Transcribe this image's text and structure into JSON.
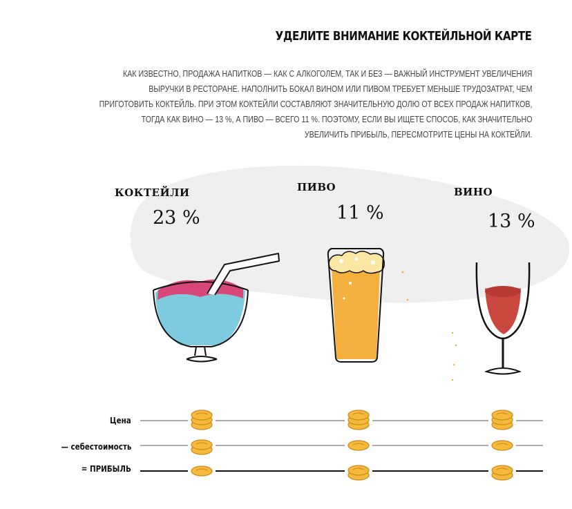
{
  "header": {
    "title": "УДЕЛИТЕ ВНИМАНИЕ КОКТЕЙЛЬНОЙ КАРТЕ",
    "lead_lines": [
      "КАК ИЗВЕСТНО, ПРОДАЖА НАПИТКОВ — КАК С АЛКОГОЛЕМ, ТАК И БЕЗ — ВАЖНЫЙ ИНСТРУМЕНТ УВЕЛИЧЕНИЯ",
      "ВЫРУЧКИ В РЕСТОРАНЕ. НАПОЛНИТЬ БОКАЛ ВИНОМ ИЛИ ПИВОМ ТРЕБУЕТ МЕНЬШЕ ТРУДОЗАТРАТ, ЧЕМ",
      "ПРИГОТОВИТЬ КОКТЕЙЛЬ. ПРИ ЭТОМ КОКТЕЙЛИ СОСТАВЛЯЮТ ЗНАЧИТЕЛЬНУЮ ДОЛЮ ОТ ВСЕХ ПРОДАЖ НАПИТКОВ,",
      "ТОГДА КАК ВИНО — 13 %, А ПИВО — ВСЕГО 11 %. ПОЭТОМУ, ЕСЛИ ВЫ ИЩЕТЕ СПОСОБ, КАК ЗНАЧИТЕЛЬНО",
      "УВЕЛИЧИТЬ ПРИБЫЛЬ, ПЕРЕСМОТРИТЕ ЦЕНЫ НА КОКТЕЙЛИ."
    ]
  },
  "drinks": [
    {
      "name": "КОКТЕЙЛИ",
      "share": "23 %"
    },
    {
      "name": "ПИВО",
      "share": "11 %"
    },
    {
      "name": "ВИНО",
      "share": "13 %"
    }
  ],
  "rows": [
    {
      "label": "Цена",
      "coins": [
        3,
        3,
        3
      ]
    },
    {
      "label": "— себестоимость",
      "coins": [
        2,
        1,
        1
      ]
    },
    {
      "label": "= ПРИБЫЛЬ",
      "coins": [
        1,
        2,
        2
      ]
    }
  ],
  "colors": {
    "blob": "#efefef",
    "cocktail_top": "#d8477a",
    "cocktail_body": "#7ecbe0",
    "beer": "#f4b03e",
    "foam": "#fbe7a4",
    "wine": "#c9483f",
    "coin": "#f6b93b",
    "coin_stroke": "#c88a1a"
  },
  "icons": [
    "cocktail-glass-icon",
    "beer-glass-icon",
    "wine-glass-icon",
    "coin-stack-icon"
  ]
}
